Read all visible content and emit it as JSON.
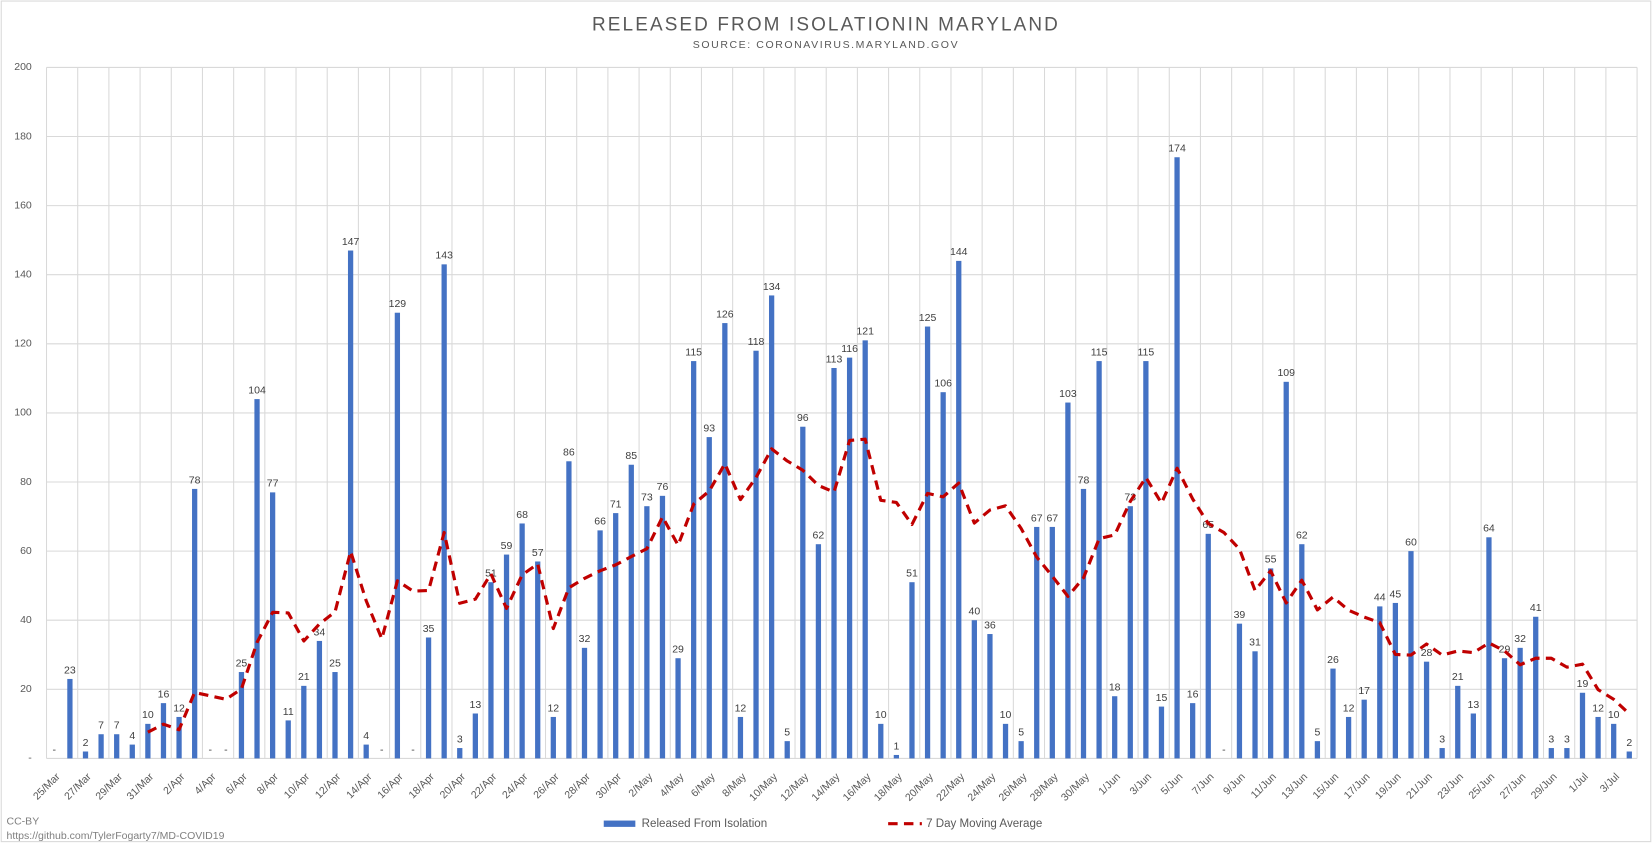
{
  "chart_data": {
    "type": "bar",
    "title": "RELEASED FROM ISOLATIONIN MARYLAND",
    "subtitle": "SOURCE: CORONAVIRUS.MARYLAND.GOV",
    "credit": "CC-BY",
    "source_url": "https://github.com/TylerFogarty7/MD-COVID19",
    "categories": [
      "25/Mar",
      null,
      "27/Mar",
      null,
      "29/Mar",
      null,
      "31/Mar",
      null,
      "2/Apr",
      null,
      "4/Apr",
      null,
      "6/Apr",
      null,
      "8/Apr",
      null,
      "10/Apr",
      null,
      "12/Apr",
      null,
      "14/Apr",
      null,
      "16/Apr",
      null,
      "18/Apr",
      null,
      "20/Apr",
      null,
      "22/Apr",
      null,
      "24/Apr",
      null,
      "26/Apr",
      null,
      "28/Apr",
      null,
      "30/Apr",
      null,
      "2/May",
      null,
      "4/May",
      null,
      "6/May",
      null,
      "8/May",
      null,
      "10/May",
      null,
      "12/May",
      null,
      "14/May",
      null,
      "16/May",
      null,
      "18/May",
      null,
      "20/May",
      null,
      "22/May",
      null,
      "24/May",
      null,
      "26/May",
      null,
      "28/May",
      null,
      "30/May",
      null,
      "1/Jun",
      null,
      "3/Jun",
      null,
      "5/Jun",
      null,
      "7/Jun",
      null,
      "9/Jun",
      null,
      "11/Jun",
      null,
      "13/Jun",
      null,
      "15/Jun",
      null,
      "17/Jun",
      null,
      "19/Jun",
      null,
      "21/Jun",
      null,
      "23/Jun",
      null,
      "25/Jun",
      null,
      "27/Jun",
      null,
      "29/Jun",
      null,
      "1/Jul",
      null,
      "3/Jul",
      null
    ],
    "series": [
      {
        "name": "Released From Isolation",
        "type": "bar",
        "color": "#4472c4",
        "values": [
          0,
          23,
          2,
          7,
          7,
          4,
          10,
          16,
          12,
          78,
          0,
          0,
          25,
          104,
          77,
          11,
          21,
          34,
          25,
          147,
          4,
          0,
          129,
          0,
          35,
          143,
          3,
          13,
          51,
          59,
          68,
          57,
          12,
          86,
          32,
          66,
          71,
          85,
          73,
          76,
          29,
          115,
          93,
          126,
          12,
          118,
          134,
          5,
          96,
          62,
          113,
          116,
          121,
          10,
          1,
          51,
          125,
          106,
          144,
          40,
          36,
          10,
          5,
          67,
          67,
          103,
          78,
          115,
          18,
          73,
          115,
          15,
          174,
          16,
          65,
          0,
          39,
          31,
          55,
          109,
          62,
          5,
          26,
          12,
          17,
          44,
          45,
          60,
          28,
          3,
          21,
          13,
          64,
          29,
          32,
          41,
          3,
          3,
          19,
          12,
          10,
          2
        ],
        "value_labels": [
          "-",
          "23",
          "2",
          "7",
          "7",
          "4",
          "10",
          "16",
          "12",
          "78",
          "-",
          "-",
          "25",
          "104",
          "77",
          "11",
          "21",
          "34",
          "25",
          "147",
          "4",
          "-",
          "129",
          "-",
          "35",
          "143",
          "3",
          "13",
          "51",
          "59",
          "68",
          "57",
          "12",
          "86",
          "32",
          "66",
          "71",
          "85",
          "73",
          "76",
          "29",
          "115",
          "93",
          "126",
          "12",
          "118",
          "134",
          "5",
          "96",
          "62",
          "113",
          "116",
          "121",
          "10",
          "1",
          "51",
          "125",
          "106",
          "144",
          "40",
          "36",
          "10",
          "5",
          "67",
          "67",
          "103",
          "78",
          "115",
          "18",
          "73",
          "115",
          "15",
          "174",
          "16",
          "65",
          "-",
          "39",
          "31",
          "55",
          "109",
          "62",
          "5",
          "26",
          "12",
          "17",
          "44",
          "45",
          "60",
          "28",
          "3",
          "21",
          "13",
          "64",
          "29",
          "32",
          "41",
          "3",
          "3",
          "19",
          "12",
          "10",
          "2"
        ]
      },
      {
        "name": "7 Day Moving Average",
        "type": "line",
        "color": "#c00000",
        "dashed": true,
        "values": [
          null,
          null,
          null,
          null,
          null,
          null,
          7.6,
          9.9,
          8.3,
          19.1,
          18.1,
          17.1,
          20.1,
          33.6,
          42.3,
          42.1,
          34.0,
          38.9,
          42.4,
          59.9,
          45.6,
          34.6,
          51.4,
          48.4,
          48.6,
          65.4,
          44.9,
          46.1,
          53.4,
          43.4,
          53.1,
          56.3,
          37.6,
          49.4,
          52.1,
          54.3,
          56.0,
          58.4,
          60.7,
          69.9,
          61.7,
          73.6,
          77.4,
          85.3,
          74.9,
          81.3,
          89.6,
          86.1,
          83.4,
          79.0,
          77.1,
          92.0,
          92.4,
          74.7,
          74.1,
          67.7,
          76.7,
          75.7,
          79.7,
          68.1,
          71.9,
          73.1,
          66.6,
          58.3,
          52.7,
          46.9,
          52.3,
          63.6,
          64.7,
          74.4,
          81.3,
          73.9,
          84.0,
          75.1,
          68.0,
          65.4,
          60.6,
          48.6,
          54.3,
          45.0,
          51.6,
          43.0,
          46.7,
          42.9,
          40.9,
          39.3,
          30.1,
          29.9,
          33.1,
          29.9,
          31.1,
          30.6,
          33.4,
          31.1,
          27.1,
          29.0,
          29.0,
          26.4,
          27.3,
          19.9,
          17.1,
          12.9
        ]
      }
    ],
    "ylim": [
      0,
      200
    ],
    "yticks": [
      {
        "value": 0,
        "label": "-"
      },
      20,
      40,
      60,
      80,
      100,
      120,
      140,
      160,
      180,
      200
    ],
    "grid": true,
    "legend": "bottom"
  }
}
